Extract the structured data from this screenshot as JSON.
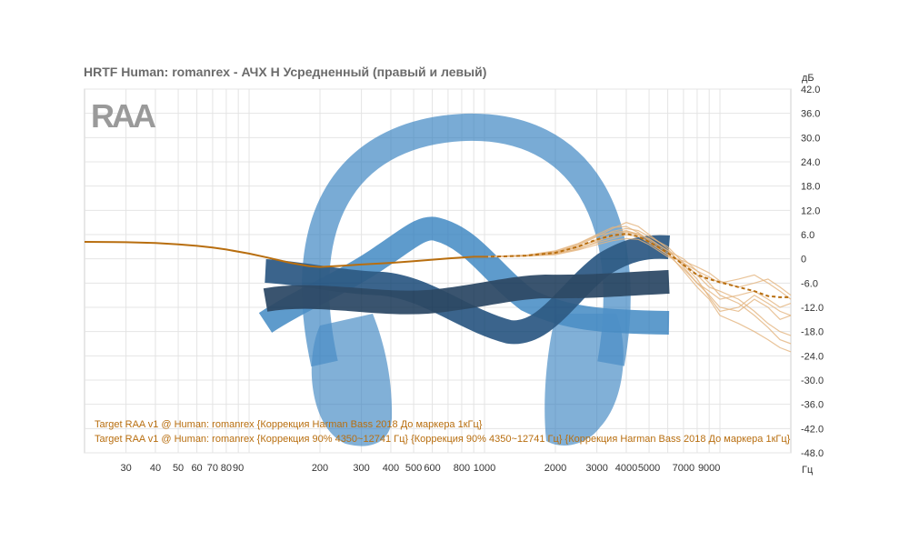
{
  "chart_data": {
    "type": "line",
    "title": "HRTF Human: romanrex - АЧХ Н Усредненный (правый и левый)",
    "x_unit": "Гц",
    "y_unit": "дБ",
    "x_scale": "log",
    "xlim": [
      20,
      20000
    ],
    "ylim": [
      -48,
      42
    ],
    "x_ticks": [
      30,
      40,
      50,
      60,
      70,
      80,
      90,
      200,
      300,
      400,
      500,
      600,
      800,
      1000,
      2000,
      3000,
      4000,
      5000,
      7000,
      9000
    ],
    "y_ticks": [
      "42.0",
      "36.0",
      "30.0",
      "24.0",
      "18.0",
      "12.0",
      "6.0",
      "0",
      "-6.0",
      "-12.0",
      "-18.0",
      "-24.0",
      "-30.0",
      "-36.0",
      "-42.0",
      "-48.0"
    ],
    "grid": true,
    "legend_placement": "bottom-left",
    "logo_text": "RAA",
    "series": [
      {
        "name": "Target RAA v1 @ Human: romanrex {Коррекция Harman Bass 2018 До маркера 1кГц}",
        "color": "#b86e0f",
        "style": "solid",
        "x": [
          20,
          30,
          40,
          50,
          60,
          70,
          80,
          100,
          120,
          150,
          180,
          200,
          250,
          300,
          400,
          500,
          600,
          700,
          800,
          900,
          1000
        ],
        "y": [
          4.2,
          4.1,
          3.9,
          3.6,
          3.2,
          2.8,
          2.3,
          1.3,
          0.3,
          -1.0,
          -1.8,
          -2.0,
          -1.7,
          -1.4,
          -1.0,
          -0.6,
          -0.2,
          0.1,
          0.3,
          0.5,
          0.5
        ]
      },
      {
        "name": "Target RAA v1 @ Human: romanrex {Коррекция 90% 4350~12741 Гц} {Коррекция 90% 4350~12741 Гц} {Коррекция Harman Bass 2018 До маркера 1кГц}",
        "color": "#b86e0f",
        "style": "dashed",
        "x": [
          1000,
          1200,
          1500,
          2000,
          2500,
          3000,
          3500,
          4000,
          4500,
          5000,
          6000,
          7000,
          8000,
          9000,
          10000,
          12000,
          14000,
          16000,
          18000,
          20000
        ],
        "y": [
          0.5,
          0.6,
          0.8,
          1.5,
          3.0,
          4.8,
          5.8,
          6.2,
          5.5,
          4.2,
          1.5,
          -1.5,
          -4.0,
          -5.0,
          -5.8,
          -7.0,
          -8.0,
          -9.2,
          -9.5,
          -9.5
        ]
      }
    ],
    "individual_measurements": {
      "color": "#e3b47e",
      "count": 8,
      "x": [
        1000,
        1500,
        2000,
        2500,
        3000,
        3500,
        4000,
        4500,
        5000,
        6000,
        7000,
        8000,
        9000,
        10000,
        12000,
        14000,
        16000,
        18000,
        20000
      ],
      "curves": [
        [
          0.5,
          0.8,
          1.6,
          3.3,
          5.5,
          7.5,
          9.0,
          8.0,
          6.0,
          2.5,
          -2.0,
          -6.0,
          -9.0,
          -12.0,
          -13.0,
          -10.0,
          -12.0,
          -15.0,
          -14.0
        ],
        [
          0.5,
          0.8,
          1.2,
          2.5,
          4.0,
          5.0,
          6.0,
          5.5,
          4.0,
          1.0,
          -1.0,
          -3.0,
          -4.5,
          -6.0,
          -5.0,
          -4.0,
          -6.0,
          -8.0,
          -10.0
        ],
        [
          0.5,
          0.9,
          2.0,
          3.8,
          6.0,
          7.8,
          8.0,
          6.5,
          4.5,
          1.5,
          -3.0,
          -7.0,
          -10.0,
          -14.0,
          -16.0,
          -18.0,
          -20.0,
          -22.0,
          -23.0
        ],
        [
          0.5,
          0.7,
          1.0,
          2.2,
          3.5,
          4.5,
          5.0,
          4.8,
          3.5,
          0.5,
          -0.5,
          -2.0,
          -3.5,
          -5.5,
          -7.0,
          -6.0,
          -5.0,
          -7.0,
          -9.0
        ],
        [
          0.5,
          0.8,
          1.8,
          3.6,
          5.8,
          6.5,
          7.0,
          6.0,
          5.0,
          2.0,
          -1.5,
          -5.0,
          -9.5,
          -13.0,
          -12.0,
          -9.0,
          -11.0,
          -13.0,
          -14.0
        ],
        [
          0.5,
          0.8,
          1.4,
          3.0,
          4.5,
          5.5,
          6.5,
          6.0,
          4.0,
          1.0,
          -2.5,
          -6.0,
          -8.0,
          -10.0,
          -9.0,
          -8.0,
          -10.0,
          -12.0,
          -11.0
        ],
        [
          0.5,
          0.9,
          1.7,
          2.8,
          4.8,
          6.8,
          7.5,
          7.0,
          5.5,
          3.0,
          -1.0,
          -4.0,
          -7.0,
          -8.0,
          -10.0,
          -13.0,
          -16.0,
          -18.0,
          -19.0
        ],
        [
          0.5,
          0.7,
          1.3,
          2.4,
          4.2,
          6.0,
          6.8,
          6.2,
          4.8,
          2.0,
          0.0,
          -3.0,
          -6.0,
          -9.0,
          -11.0,
          -14.0,
          -17.0,
          -20.0,
          -21.0
        ]
      ]
    }
  },
  "colors": {
    "target": "#b86e0f",
    "measurements": "#e3b47e",
    "grid": "#e4e4e4",
    "logo": "#9a9a9a",
    "watermark_light": "#2e7cbd",
    "watermark_dark": "#0c3f70",
    "watermark_darkest": "#0b2b4c"
  }
}
